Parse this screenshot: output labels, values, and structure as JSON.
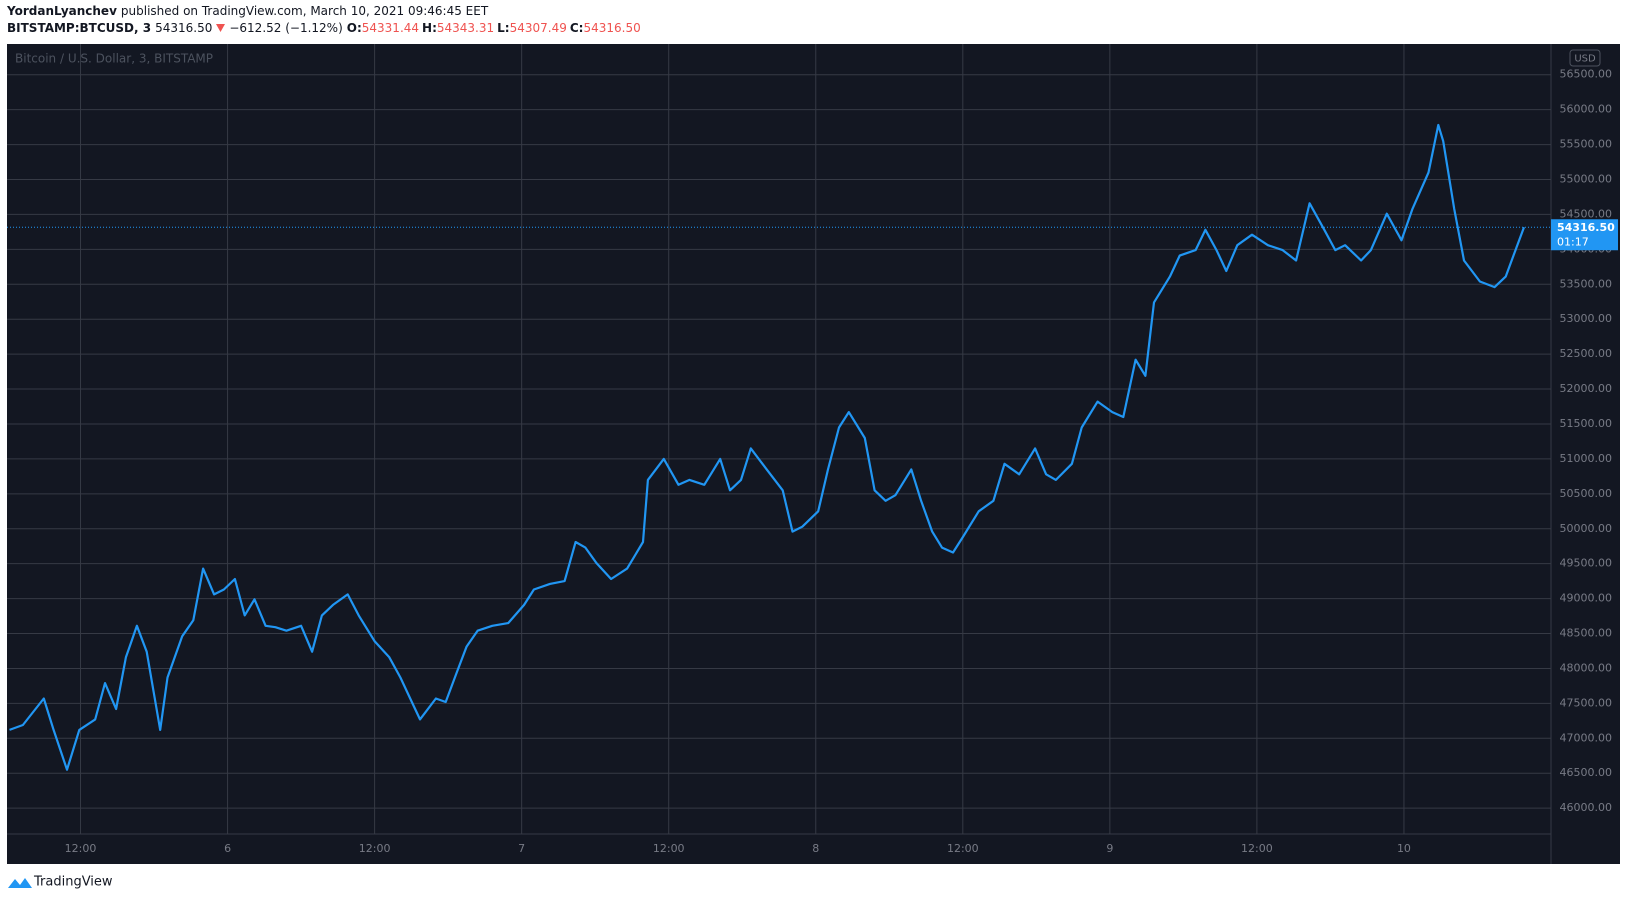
{
  "header": {
    "author": "YordanLyanchev",
    "published": "published on TradingView.com, March 10, 2021 09:46:45 EET",
    "symbol": "BITSTAMP:BTCUSD, 3",
    "price": "54316.50",
    "change": "−612.52 (−1.12%)",
    "ohlc": [
      {
        "label": "O:",
        "value": "54331.44"
      },
      {
        "label": "H:",
        "value": "54343.31"
      },
      {
        "label": "L:",
        "value": "54307.49"
      },
      {
        "label": "C:",
        "value": "54316.50"
      }
    ]
  },
  "chart_data": {
    "type": "line",
    "title": "Bitcoin / U.S. Dollar, 3, BITSTAMP",
    "currency": "USD",
    "color": "#2196f3",
    "grid": true,
    "x": [
      6.2,
      7.3,
      9.0,
      9.8,
      10.9,
      11.9,
      13.2,
      14.0,
      14.9,
      15.7,
      16.6,
      17.4,
      18.5,
      19.1,
      20.3,
      21.2,
      22.0,
      22.9,
      23.7,
      24.6,
      25.4,
      26.2,
      27.1,
      27.9,
      28.8,
      30.0,
      30.9,
      31.7,
      32.6,
      33.8,
      34.7,
      36.0,
      37.2,
      38.1,
      38.9,
      39.7,
      41.0,
      41.8,
      42.7,
      43.5,
      44.4,
      45.6,
      46.9,
      48.2,
      49.0,
      50.3,
      51.5,
      52.4,
      53.2,
      54.1,
      55.3,
      56.6,
      57.9,
      58.3,
      59.6,
      60.8,
      61.7,
      62.9,
      64.2,
      65.0,
      65.9,
      66.7,
      68.0,
      69.3,
      70.1,
      70.9,
      72.2,
      73.0,
      73.9,
      74.7,
      76.0,
      76.8,
      77.7,
      78.5,
      79.8,
      80.6,
      81.5,
      82.3,
      83.2,
      84.0,
      85.3,
      86.5,
      87.4,
      88.6,
      89.9,
      90.8,
      91.6,
      92.9,
      93.7,
      95.0,
      96.2,
      97.1,
      98.1,
      98.9,
      99.6,
      100.9,
      101.7,
      103.0,
      103.8,
      104.7,
      105.5,
      106.4,
      107.6,
      108.9,
      110.1,
      111.2,
      112.3,
      113.5,
      114.4,
      115.2,
      116.5,
      117.3,
      118.6,
      119.8,
      120.7,
      122.0,
      122.8,
      123.2,
      124.1,
      124.9,
      126.2,
      127.4,
      128.3,
      129.1,
      129.8
    ],
    "values": [
      47120,
      47190,
      47570,
      47120,
      46550,
      47120,
      47270,
      47790,
      47420,
      48160,
      48610,
      48240,
      47120,
      47870,
      48460,
      48690,
      49430,
      49060,
      49130,
      49280,
      48760,
      48990,
      48610,
      48590,
      48540,
      48610,
      48240,
      48760,
      48910,
      49060,
      48760,
      48390,
      48160,
      47870,
      47570,
      47270,
      47570,
      47520,
      47940,
      48310,
      48540,
      48610,
      48650,
      48910,
      49130,
      49210,
      49250,
      49810,
      49730,
      49510,
      49280,
      49430,
      49810,
      50700,
      51000,
      50630,
      50700,
      50630,
      51000,
      50550,
      50700,
      51150,
      50850,
      50550,
      49960,
      50030,
      50250,
      50850,
      51450,
      51670,
      51300,
      50550,
      50400,
      50480,
      50850,
      50400,
      49960,
      49730,
      49660,
      49880,
      50250,
      50400,
      50930,
      50780,
      51150,
      50780,
      50700,
      50930,
      51450,
      51820,
      51670,
      51600,
      52420,
      52190,
      53240,
      53610,
      53910,
      53990,
      54280,
      53990,
      53690,
      54060,
      54210,
      54060,
      53990,
      53840,
      54660,
      54280,
      53990,
      54060,
      53840,
      53990,
      54510,
      54130,
      54580,
      55100,
      55780,
      55550,
      54580,
      53840,
      53540,
      53460,
      53610,
      53990,
      54316.5
    ],
    "xlim": [
      6,
      132
    ],
    "ylim": [
      45630,
      56940
    ],
    "xticks": [
      {
        "value": 12,
        "label": "12:00"
      },
      {
        "value": 24,
        "label": "6"
      },
      {
        "value": 36,
        "label": "12:00"
      },
      {
        "value": 48,
        "label": "7"
      },
      {
        "value": 60,
        "label": "12:00"
      },
      {
        "value": 72,
        "label": "8"
      },
      {
        "value": 84,
        "label": "12:00"
      },
      {
        "value": 96,
        "label": "9"
      },
      {
        "value": 108,
        "label": "12:00"
      },
      {
        "value": 120,
        "label": "10"
      }
    ],
    "yticks": [
      {
        "value": 46000,
        "label": "46000.00"
      },
      {
        "value": 46500,
        "label": "46500.00"
      },
      {
        "value": 47000,
        "label": "47000.00"
      },
      {
        "value": 47500,
        "label": "47500.00"
      },
      {
        "value": 48000,
        "label": "48000.00"
      },
      {
        "value": 48500,
        "label": "48500.00"
      },
      {
        "value": 49000,
        "label": "49000.00"
      },
      {
        "value": 49500,
        "label": "49500.00"
      },
      {
        "value": 50000,
        "label": "50000.00"
      },
      {
        "value": 50500,
        "label": "50500.00"
      },
      {
        "value": 51000,
        "label": "51000.00"
      },
      {
        "value": 51500,
        "label": "51500.00"
      },
      {
        "value": 52000,
        "label": "52000.00"
      },
      {
        "value": 52500,
        "label": "52500.00"
      },
      {
        "value": 53000,
        "label": "53000.00"
      },
      {
        "value": 53500,
        "label": "53500.00"
      },
      {
        "value": 54000,
        "label": "54000.00"
      },
      {
        "value": 54500,
        "label": "54500.00"
      },
      {
        "value": 55000,
        "label": "55000.00"
      },
      {
        "value": 55500,
        "label": "55500.00"
      },
      {
        "value": 56000,
        "label": "56000.00"
      },
      {
        "value": 56500,
        "label": "56500.00"
      }
    ],
    "last_price": {
      "value": 54316.5,
      "label": "54316.50"
    },
    "countdown": "01:17"
  },
  "footer": {
    "brand": "TradingView"
  }
}
